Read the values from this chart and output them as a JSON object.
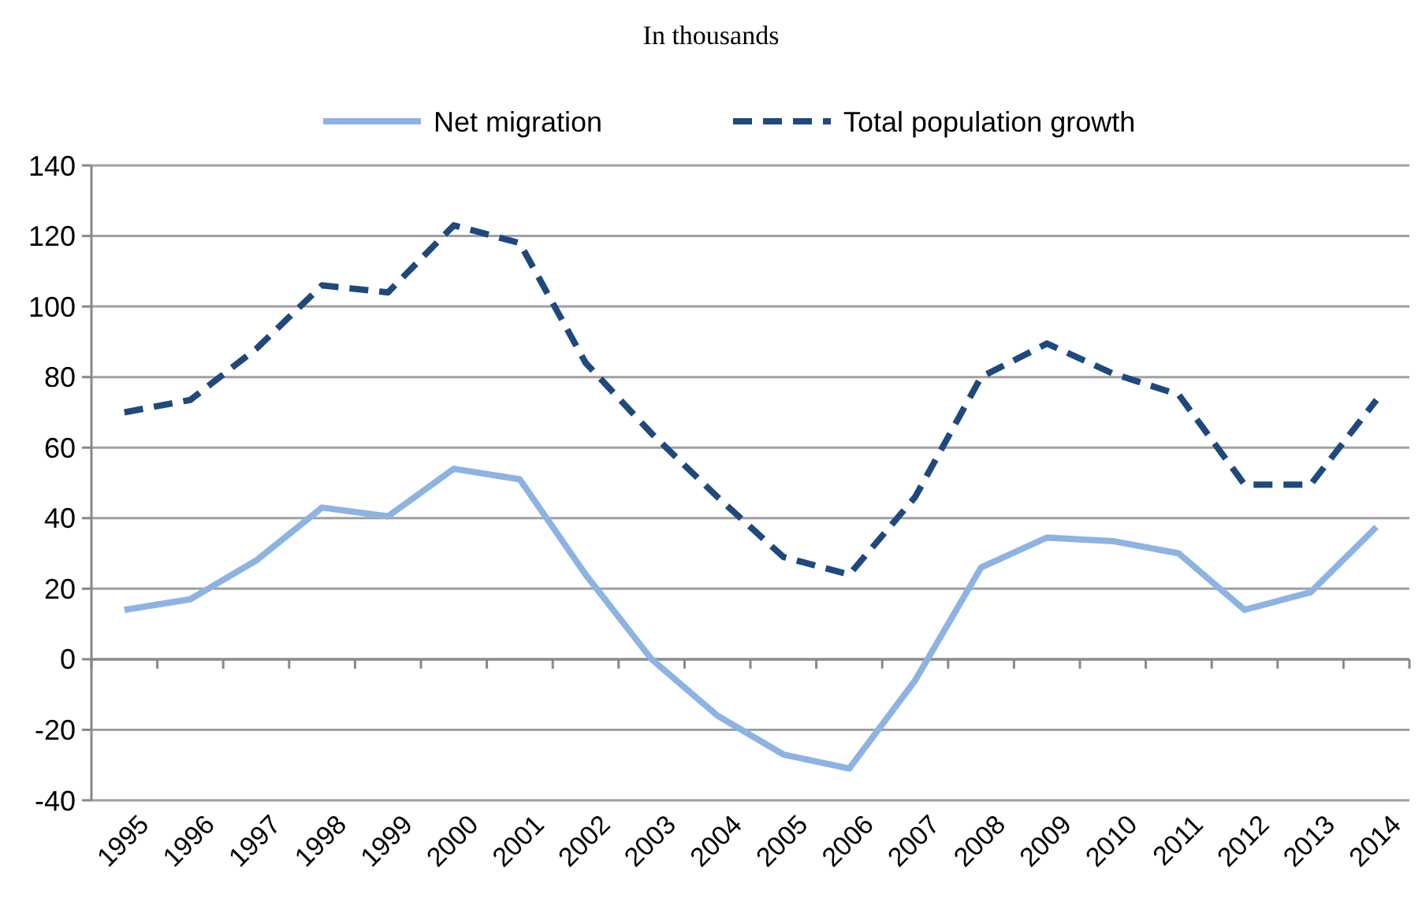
{
  "chart_data": {
    "type": "line",
    "title": "In thousands",
    "categories": [
      "1995",
      "1996",
      "1997",
      "1998",
      "1999",
      "2000",
      "2001",
      "2002",
      "2003",
      "2004",
      "2005",
      "2006",
      "2007",
      "2008",
      "2009",
      "2010",
      "2011",
      "2012",
      "2013",
      "2014"
    ],
    "series": [
      {
        "name": "Net migration",
        "color": "#8db3e2",
        "line_style": "solid",
        "values": [
          14,
          17,
          28,
          43,
          40.5,
          54,
          51,
          24,
          0,
          -16,
          -27,
          -31,
          -6,
          26,
          34.5,
          33.5,
          30,
          14,
          19,
          37.5
        ]
      },
      {
        "name": "Total population growth",
        "color": "#1f497d",
        "line_style": "dashed",
        "values": [
          70,
          73.5,
          88,
          106,
          104,
          123,
          118,
          84,
          64,
          46,
          29,
          24,
          46,
          80,
          89.5,
          81,
          75,
          49.5,
          49.5,
          73.5
        ]
      }
    ],
    "ylim": [
      -40,
      140
    ],
    "yticks": [
      -40,
      -20,
      0,
      20,
      40,
      60,
      80,
      100,
      120,
      140
    ],
    "grid": "y",
    "legend": "top",
    "marker": "none"
  }
}
